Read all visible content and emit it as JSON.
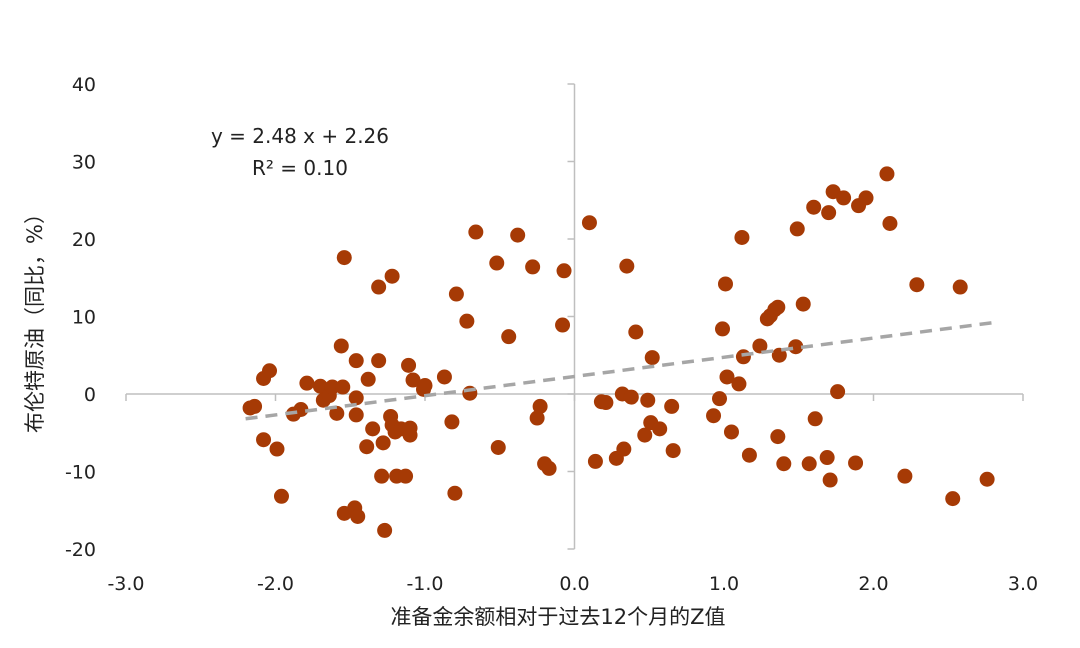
{
  "chart_data": {
    "type": "scatter",
    "xlabel": "准备金余额相对于过去12个月的Z值",
    "ylabel": "布伦特原油（同比，%）",
    "xlim": [
      -3.0,
      3.0
    ],
    "ylim": [
      -20,
      40
    ],
    "x_ticks": [
      -3.0,
      -2.0,
      -1.0,
      0.0,
      1.0,
      2.0,
      3.0
    ],
    "x_tick_labels": [
      "-3.0",
      "-2.0",
      "-1.0",
      "0.0",
      "1.0",
      "2.0",
      "3.0"
    ],
    "y_ticks": [
      -20,
      -10,
      0,
      10,
      20,
      30,
      40
    ],
    "y_tick_labels": [
      "-20",
      "-10",
      "0",
      "10",
      "20",
      "30",
      "40"
    ],
    "grid": false,
    "point_color": "#A63A05",
    "trendline_color": "#A6A6A6",
    "trendline": {
      "slope": 2.48,
      "intercept": 2.26,
      "x_range": [
        -2.2,
        2.8
      ]
    },
    "annotations": [
      "y = 2.48 x + 2.26",
      "R² = 0.10"
    ],
    "points": [
      [
        -2.17,
        -1.8
      ],
      [
        -2.14,
        -1.6
      ],
      [
        -2.08,
        2.0
      ],
      [
        -2.04,
        3.0
      ],
      [
        -2.08,
        -5.9
      ],
      [
        -1.99,
        -7.1
      ],
      [
        -1.96,
        -13.2
      ],
      [
        -1.88,
        -2.6
      ],
      [
        -1.83,
        -2.0
      ],
      [
        -1.79,
        1.4
      ],
      [
        -1.7,
        1.0
      ],
      [
        -1.68,
        -0.8
      ],
      [
        -1.64,
        -0.2
      ],
      [
        -1.62,
        0.9
      ],
      [
        -1.59,
        -2.5
      ],
      [
        -1.56,
        6.2
      ],
      [
        -1.55,
        0.9
      ],
      [
        -1.54,
        17.6
      ],
      [
        -1.54,
        -15.4
      ],
      [
        -1.47,
        -14.7
      ],
      [
        -1.46,
        4.3
      ],
      [
        -1.46,
        -2.7
      ],
      [
        -1.46,
        -0.5
      ],
      [
        -1.45,
        -15.8
      ],
      [
        -1.39,
        -6.8
      ],
      [
        -1.38,
        1.9
      ],
      [
        -1.35,
        -4.5
      ],
      [
        -1.31,
        13.8
      ],
      [
        -1.31,
        4.3
      ],
      [
        -1.29,
        -10.6
      ],
      [
        -1.28,
        -6.3
      ],
      [
        -1.27,
        -17.6
      ],
      [
        -1.23,
        -2.9
      ],
      [
        -1.22,
        15.2
      ],
      [
        -1.22,
        -4.0
      ],
      [
        -1.2,
        -4.9
      ],
      [
        -1.19,
        -10.6
      ],
      [
        -1.16,
        -4.5
      ],
      [
        -1.13,
        -10.6
      ],
      [
        -1.11,
        3.7
      ],
      [
        -1.1,
        -5.3
      ],
      [
        -1.1,
        -4.4
      ],
      [
        -1.08,
        1.8
      ],
      [
        -1.01,
        0.6
      ],
      [
        -1.0,
        1.1
      ],
      [
        -0.87,
        2.2
      ],
      [
        -0.82,
        -3.6
      ],
      [
        -0.8,
        -12.8
      ],
      [
        -0.79,
        12.9
      ],
      [
        -0.72,
        9.4
      ],
      [
        -0.7,
        0.1
      ],
      [
        -0.66,
        20.9
      ],
      [
        -0.52,
        16.9
      ],
      [
        -0.51,
        -6.9
      ],
      [
        -0.44,
        7.4
      ],
      [
        -0.38,
        20.5
      ],
      [
        -0.28,
        16.4
      ],
      [
        -0.25,
        -3.1
      ],
      [
        -0.23,
        -1.6
      ],
      [
        -0.2,
        -9.0
      ],
      [
        -0.17,
        -9.6
      ],
      [
        -0.08,
        8.9
      ],
      [
        -0.07,
        15.9
      ],
      [
        0.1,
        22.1
      ],
      [
        0.14,
        -8.7
      ],
      [
        0.18,
        -1.0
      ],
      [
        0.21,
        -1.1
      ],
      [
        0.28,
        -8.3
      ],
      [
        0.32,
        0.0
      ],
      [
        0.33,
        -7.1
      ],
      [
        0.35,
        16.5
      ],
      [
        0.38,
        -0.4
      ],
      [
        0.41,
        8.0
      ],
      [
        0.47,
        -5.3
      ],
      [
        0.49,
        -0.8
      ],
      [
        0.51,
        -3.7
      ],
      [
        0.52,
        4.7
      ],
      [
        0.57,
        -4.5
      ],
      [
        0.65,
        -1.6
      ],
      [
        0.66,
        -7.3
      ],
      [
        0.93,
        -2.8
      ],
      [
        0.97,
        -0.6
      ],
      [
        0.99,
        8.4
      ],
      [
        1.01,
        14.2
      ],
      [
        1.02,
        2.2
      ],
      [
        1.05,
        -4.9
      ],
      [
        1.1,
        1.3
      ],
      [
        1.12,
        20.2
      ],
      [
        1.13,
        4.8
      ],
      [
        1.17,
        -7.9
      ],
      [
        1.24,
        6.2
      ],
      [
        1.29,
        9.7
      ],
      [
        1.31,
        10.1
      ],
      [
        1.34,
        10.9
      ],
      [
        1.36,
        11.2
      ],
      [
        1.36,
        -5.5
      ],
      [
        1.37,
        5.0
      ],
      [
        1.4,
        -9.0
      ],
      [
        1.48,
        6.1
      ],
      [
        1.49,
        21.3
      ],
      [
        1.53,
        11.6
      ],
      [
        1.57,
        -9.0
      ],
      [
        1.6,
        24.1
      ],
      [
        1.61,
        -3.2
      ],
      [
        1.69,
        -8.2
      ],
      [
        1.7,
        23.4
      ],
      [
        1.71,
        -11.1
      ],
      [
        1.73,
        26.1
      ],
      [
        1.76,
        0.3
      ],
      [
        1.8,
        25.3
      ],
      [
        1.88,
        -8.9
      ],
      [
        1.9,
        24.3
      ],
      [
        1.95,
        25.3
      ],
      [
        2.09,
        28.4
      ],
      [
        2.11,
        22.0
      ],
      [
        2.21,
        -10.6
      ],
      [
        2.29,
        14.1
      ],
      [
        2.53,
        -13.5
      ],
      [
        2.58,
        13.8
      ],
      [
        2.76,
        -11.0
      ]
    ]
  }
}
